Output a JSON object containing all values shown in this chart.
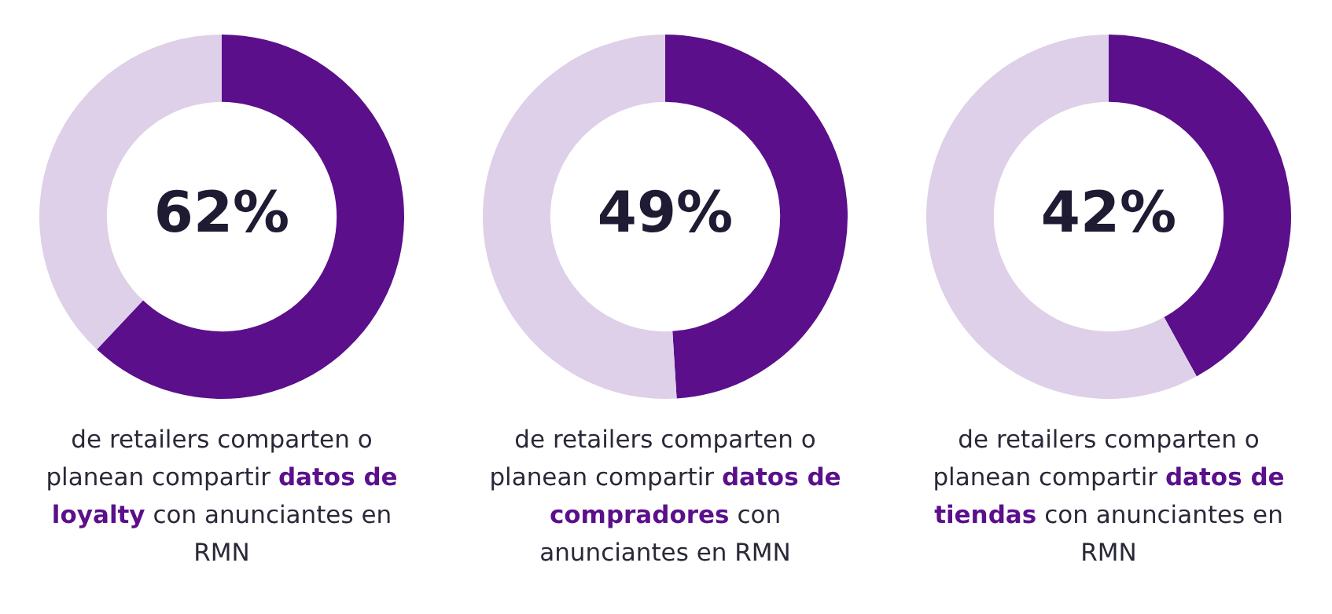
{
  "chart_data": [
    {
      "type": "donut",
      "categories": [
        null,
        null
      ],
      "values": [
        62,
        38
      ],
      "colors": [
        "#5b0f8b",
        "#ddd0e8"
      ],
      "value_labels": [
        "62%",
        null
      ],
      "annotations": [
        "de retailers comparten o planean compartir",
        "datos de loyalty",
        "con anunciantes en RMN"
      ],
      "legend": false
    },
    {
      "type": "donut",
      "categories": [
        null,
        null
      ],
      "values": [
        49,
        51
      ],
      "colors": [
        "#5b0f8b",
        "#ddd0e8"
      ],
      "value_labels": [
        "49%",
        null
      ],
      "annotations": [
        "de retailers comparten o planean compartir",
        "datos de compradores",
        "con anunciantes en RMN"
      ],
      "legend": false
    },
    {
      "type": "donut",
      "categories": [
        null,
        null
      ],
      "values": [
        42,
        58
      ],
      "colors": [
        "#5b0f8b",
        "#ddd0e8"
      ],
      "value_labels": [
        "42%",
        null
      ],
      "annotations": [
        "de retailers comparten o planean compartir",
        "datos de tiendas",
        "con anunciantes en RMN"
      ],
      "legend": false
    }
  ]
}
